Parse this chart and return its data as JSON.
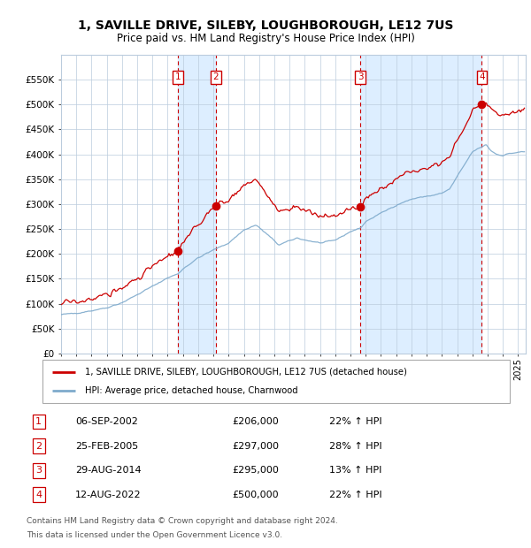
{
  "title": "1, SAVILLE DRIVE, SILEBY, LOUGHBOROUGH, LE12 7US",
  "subtitle": "Price paid vs. HM Land Registry's House Price Index (HPI)",
  "legend_line1": "1, SAVILLE DRIVE, SILEBY, LOUGHBOROUGH, LE12 7US (detached house)",
  "legend_line2": "HPI: Average price, detached house, Charnwood",
  "footer1": "Contains HM Land Registry data © Crown copyright and database right 2024.",
  "footer2": "This data is licensed under the Open Government Licence v3.0.",
  "sales": [
    {
      "num": 1,
      "date": "06-SEP-2002",
      "year": 2002.68,
      "price": 206000,
      "pct": "22%",
      "dir": "↑"
    },
    {
      "num": 2,
      "date": "25-FEB-2005",
      "year": 2005.15,
      "price": 297000,
      "pct": "28%",
      "dir": "↑"
    },
    {
      "num": 3,
      "date": "29-AUG-2014",
      "year": 2014.66,
      "price": 295000,
      "pct": "13%",
      "dir": "↑"
    },
    {
      "num": 4,
      "date": "12-AUG-2022",
      "year": 2022.62,
      "price": 500000,
      "pct": "22%",
      "dir": "↑"
    }
  ],
  "ylim": [
    0,
    600000
  ],
  "yticks": [
    0,
    50000,
    100000,
    150000,
    200000,
    250000,
    300000,
    350000,
    400000,
    450000,
    500000,
    550000
  ],
  "xlim_start": 1995.0,
  "xlim_end": 2025.5,
  "red_color": "#cc0000",
  "blue_color": "#7eaacc",
  "shade_color": "#ddeeff",
  "grid_color": "#bbccdd",
  "bg_color": "#ffffff"
}
